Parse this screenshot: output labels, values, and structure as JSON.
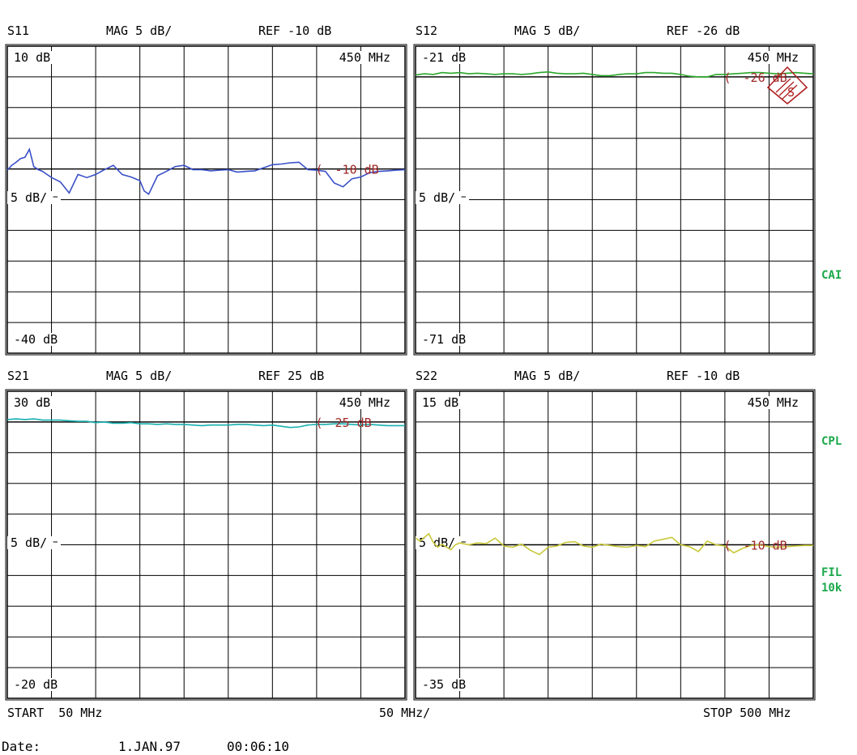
{
  "colors": {
    "s11": "#3a50c8",
    "s12": "#2aa82a",
    "s21": "#18b0b0",
    "s22": "#c8c83a",
    "marker": "#a02828",
    "grid": "#000000",
    "side": "#1aa84a"
  },
  "side_labels": {
    "cal": "CAI",
    "cpl": "CPL",
    "fil1": "FIL",
    "fil2": "10k"
  },
  "footer": {
    "start": "START  50 MHz",
    "per_div": "50 MHz/",
    "stop": "STOP 500 MHz",
    "date_label": "Date:",
    "date_value": "1.JAN.97",
    "time_value": "00:06:10"
  },
  "chart_data": [
    {
      "type": "line",
      "name": "S11",
      "header": {
        "param": "S11",
        "mag": "MAG 5 dB/",
        "ref": "REF -10 dB"
      },
      "labels": {
        "top": "10 dB",
        "freq": "450 MHz",
        "mid": "5 dB/",
        "bottom": "-40 dB",
        "ref_marker": "-10 dB"
      },
      "ylim": [
        -40,
        10
      ],
      "ref": -10,
      "xlim": [
        50,
        500
      ],
      "x_unit": "MHz",
      "y_unit": "dB",
      "grid": true,
      "x": [
        50,
        55,
        60,
        65,
        70,
        75,
        80,
        85,
        90,
        95,
        100,
        110,
        120,
        130,
        140,
        150,
        160,
        170,
        180,
        190,
        200,
        205,
        210,
        220,
        230,
        240,
        250,
        260,
        270,
        280,
        290,
        300,
        310,
        320,
        330,
        340,
        350,
        360,
        370,
        380,
        390,
        400,
        410,
        420,
        430,
        440,
        450,
        460,
        470,
        480,
        490,
        500
      ],
      "values": [
        -10.2,
        -9.4,
        -8.9,
        -8.3,
        -8.1,
        -6.8,
        -9.6,
        -10.1,
        -10.4,
        -10.9,
        -11.4,
        -12.1,
        -13.9,
        -10.9,
        -11.4,
        -10.9,
        -10.1,
        -9.4,
        -10.9,
        -11.3,
        -11.9,
        -13.6,
        -14.1,
        -11.1,
        -10.4,
        -9.6,
        -9.4,
        -10.1,
        -10.1,
        -10.3,
        -10.2,
        -10.1,
        -10.5,
        -10.4,
        -10.3,
        -9.8,
        -9.3,
        -9.2,
        -9.0,
        -8.9,
        -10.1,
        -10.2,
        -10.4,
        -12.3,
        -12.9,
        -11.6,
        -11.3,
        -10.6,
        -10.4,
        -10.3,
        -10.2,
        -10.1
      ]
    },
    {
      "type": "line",
      "name": "S12",
      "header": {
        "param": "S12",
        "mag": "MAG 5 dB/",
        "ref": "REF -26 dB"
      },
      "labels": {
        "top": "-21 dB",
        "freq": "450 MHz",
        "mid": "5 dB/",
        "bottom": "-71 dB",
        "ref_marker": "-26 dB"
      },
      "ylim": [
        -71,
        -21
      ],
      "ref": -26,
      "xlim": [
        50,
        500
      ],
      "x_unit": "MHz",
      "y_unit": "dB",
      "grid": true,
      "x": [
        50,
        60,
        70,
        80,
        90,
        100,
        110,
        120,
        130,
        140,
        150,
        160,
        170,
        180,
        190,
        200,
        210,
        220,
        230,
        240,
        250,
        260,
        270,
        280,
        290,
        300,
        310,
        320,
        330,
        340,
        350,
        360,
        370,
        380,
        390,
        400,
        410,
        420,
        430,
        440,
        450,
        460,
        470,
        480,
        490,
        500
      ],
      "values": [
        -25.7,
        -25.5,
        -25.6,
        -25.3,
        -25.4,
        -25.3,
        -25.5,
        -25.4,
        -25.5,
        -25.6,
        -25.5,
        -25.5,
        -25.6,
        -25.5,
        -25.3,
        -25.2,
        -25.4,
        -25.5,
        -25.5,
        -25.4,
        -25.6,
        -25.8,
        -25.8,
        -25.6,
        -25.5,
        -25.5,
        -25.3,
        -25.3,
        -25.4,
        -25.4,
        -25.6,
        -25.9,
        -26.0,
        -26.0,
        -25.6,
        -25.6,
        -25.5,
        -25.4,
        -25.3,
        -25.3,
        -25.4,
        -25.5,
        -25.4,
        -25.3,
        -25.4,
        -25.5
      ]
    },
    {
      "type": "line",
      "name": "S21",
      "header": {
        "param": "S21",
        "mag": "MAG 5 dB/",
        "ref": "REF 25 dB"
      },
      "labels": {
        "top": "30 dB",
        "freq": "450 MHz",
        "mid": "5 dB/",
        "bottom": "-20 dB",
        "ref_marker": "25 dB"
      },
      "ylim": [
        -20,
        30
      ],
      "ref": 25,
      "xlim": [
        50,
        500
      ],
      "x_unit": "MHz",
      "y_unit": "dB",
      "grid": true,
      "x": [
        50,
        60,
        70,
        80,
        90,
        100,
        110,
        120,
        130,
        140,
        150,
        160,
        170,
        180,
        190,
        200,
        210,
        220,
        230,
        240,
        250,
        260,
        270,
        280,
        290,
        300,
        310,
        320,
        330,
        340,
        350,
        360,
        370,
        380,
        390,
        400,
        410,
        420,
        430,
        440,
        450,
        460,
        470,
        480,
        490,
        500
      ],
      "values": [
        25.4,
        25.5,
        25.4,
        25.5,
        25.3,
        25.3,
        25.3,
        25.2,
        25.1,
        25.1,
        24.9,
        25.0,
        24.8,
        24.8,
        24.9,
        24.7,
        24.7,
        24.6,
        24.7,
        24.6,
        24.6,
        24.5,
        24.4,
        24.5,
        24.5,
        24.5,
        24.6,
        24.6,
        24.5,
        24.4,
        24.5,
        24.3,
        24.1,
        24.2,
        24.5,
        24.6,
        24.6,
        24.7,
        24.7,
        24.6,
        24.5,
        24.6,
        24.5,
        24.4,
        24.4,
        24.4
      ]
    },
    {
      "type": "line",
      "name": "S22",
      "header": {
        "param": "S22",
        "mag": "MAG 5 dB/",
        "ref": "REF -10 dB"
      },
      "labels": {
        "top": "15 dB",
        "freq": "450 MHz",
        "mid": "5 dB/",
        "bottom": "-35 dB",
        "ref_marker": "-10 dB"
      },
      "ylim": [
        -35,
        15
      ],
      "ref": -10,
      "xlim": [
        50,
        500
      ],
      "x_unit": "MHz",
      "y_unit": "dB",
      "grid": true,
      "x": [
        50,
        55,
        60,
        65,
        70,
        75,
        80,
        85,
        90,
        95,
        100,
        110,
        120,
        130,
        140,
        150,
        160,
        170,
        180,
        190,
        200,
        210,
        220,
        230,
        240,
        250,
        260,
        270,
        280,
        290,
        300,
        310,
        320,
        330,
        340,
        350,
        360,
        370,
        380,
        390,
        400,
        410,
        420,
        430,
        440,
        450,
        460,
        470,
        480,
        490,
        500
      ],
      "values": [
        -8.9,
        -9.4,
        -8.8,
        -8.2,
        -9.6,
        -10.4,
        -9.9,
        -10.4,
        -10.8,
        -10.0,
        -9.7,
        -10.0,
        -9.7,
        -9.8,
        -8.9,
        -10.2,
        -10.4,
        -9.9,
        -10.9,
        -11.6,
        -10.4,
        -10.2,
        -9.6,
        -9.5,
        -10.2,
        -10.4,
        -9.9,
        -10.1,
        -10.3,
        -10.4,
        -10.1,
        -10.3,
        -9.4,
        -9.1,
        -8.8,
        -10.0,
        -10.3,
        -11.1,
        -9.4,
        -10.0,
        -10.2,
        -11.3,
        -10.6,
        -10.1,
        -10.0,
        -10.3,
        -10.4,
        -10.3,
        -10.2,
        -10.1,
        -10.1
      ]
    }
  ]
}
